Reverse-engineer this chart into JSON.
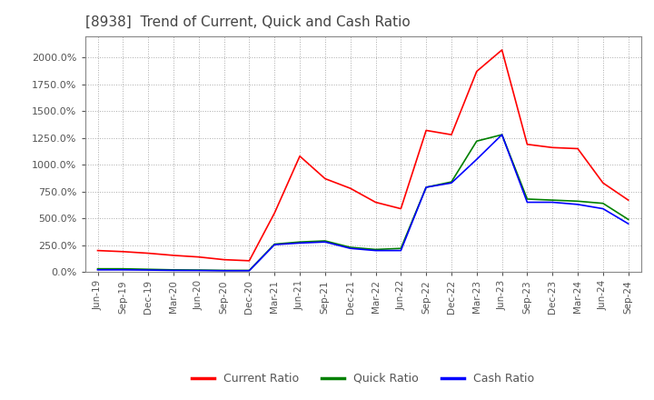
{
  "title": "[8938]  Trend of Current, Quick and Cash Ratio",
  "title_fontsize": 11,
  "background_color": "#ffffff",
  "plot_background": "#ffffff",
  "grid_color": "#aaaaaa",
  "ylim": [
    0.0,
    2200.0
  ],
  "yticks": [
    0,
    250,
    500,
    750,
    1000,
    1250,
    1500,
    1750,
    2000
  ],
  "ytick_labels": [
    "0.0%",
    "250.0%",
    "500.0%",
    "750.0%",
    "1000.0%",
    "1250.0%",
    "1500.0%",
    "1750.0%",
    "2000.0%"
  ],
  "x_labels": [
    "Jun-19",
    "Sep-19",
    "Dec-19",
    "Mar-20",
    "Jun-20",
    "Sep-20",
    "Dec-20",
    "Mar-21",
    "Jun-21",
    "Sep-21",
    "Dec-21",
    "Mar-22",
    "Jun-22",
    "Sep-22",
    "Dec-22",
    "Mar-23",
    "Jun-23",
    "Sep-23",
    "Dec-23",
    "Mar-24",
    "Jun-24",
    "Sep-24"
  ],
  "current_ratio": [
    200,
    190,
    175,
    155,
    140,
    115,
    105,
    550,
    1080,
    870,
    780,
    650,
    590,
    1320,
    1280,
    1870,
    2070,
    1190,
    1160,
    1150,
    830,
    670
  ],
  "quick_ratio": [
    30,
    30,
    25,
    20,
    18,
    15,
    15,
    260,
    280,
    290,
    230,
    210,
    220,
    790,
    840,
    1220,
    1280,
    680,
    670,
    660,
    640,
    490
  ],
  "cash_ratio": [
    20,
    20,
    18,
    15,
    14,
    12,
    12,
    255,
    270,
    280,
    220,
    200,
    200,
    790,
    830,
    1050,
    1280,
    650,
    650,
    630,
    590,
    450
  ],
  "current_color": "#ff0000",
  "quick_color": "#008000",
  "cash_color": "#0000ff",
  "line_width": 1.2,
  "legend_labels": [
    "Current Ratio",
    "Quick Ratio",
    "Cash Ratio"
  ]
}
